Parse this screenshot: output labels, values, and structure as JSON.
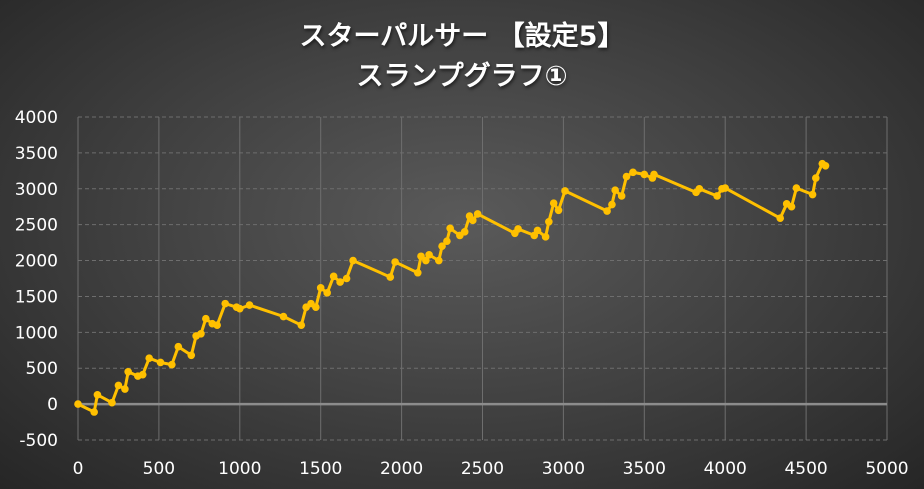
{
  "chart_data": {
    "type": "line",
    "title_lines": [
      "スターパルサー 【設定5】",
      "スランプグラフ①"
    ],
    "xlabel": "",
    "ylabel": "",
    "xlim": [
      0,
      5000
    ],
    "ylim": [
      -500,
      4000
    ],
    "x_ticks": [
      0,
      500,
      1000,
      1500,
      2000,
      2500,
      3000,
      3500,
      4000,
      4500,
      5000
    ],
    "y_ticks": [
      -500,
      0,
      500,
      1000,
      1500,
      2000,
      2500,
      3000,
      3500,
      4000
    ],
    "grid": true,
    "line_color": "#ffc000",
    "grid_color": "#6e6e6e",
    "zero_line_color": "#8c8c8c",
    "series": [
      {
        "points": [
          [
            0,
            0
          ],
          [
            100,
            -110
          ],
          [
            120,
            130
          ],
          [
            210,
            20
          ],
          [
            250,
            260
          ],
          [
            290,
            210
          ],
          [
            310,
            450
          ],
          [
            370,
            390
          ],
          [
            400,
            410
          ],
          [
            440,
            640
          ],
          [
            510,
            580
          ],
          [
            580,
            550
          ],
          [
            620,
            800
          ],
          [
            700,
            680
          ],
          [
            730,
            950
          ],
          [
            760,
            980
          ],
          [
            790,
            1190
          ],
          [
            830,
            1120
          ],
          [
            860,
            1100
          ],
          [
            910,
            1400
          ],
          [
            980,
            1350
          ],
          [
            1000,
            1330
          ],
          [
            1060,
            1380
          ],
          [
            1270,
            1220
          ],
          [
            1380,
            1100
          ],
          [
            1410,
            1350
          ],
          [
            1440,
            1400
          ],
          [
            1470,
            1350
          ],
          [
            1500,
            1620
          ],
          [
            1540,
            1550
          ],
          [
            1580,
            1780
          ],
          [
            1620,
            1700
          ],
          [
            1660,
            1750
          ],
          [
            1700,
            2000
          ],
          [
            1930,
            1770
          ],
          [
            1960,
            1980
          ],
          [
            2100,
            1830
          ],
          [
            2120,
            2060
          ],
          [
            2150,
            2000
          ],
          [
            2170,
            2080
          ],
          [
            2230,
            2000
          ],
          [
            2250,
            2200
          ],
          [
            2280,
            2270
          ],
          [
            2300,
            2450
          ],
          [
            2360,
            2350
          ],
          [
            2390,
            2400
          ],
          [
            2420,
            2620
          ],
          [
            2440,
            2560
          ],
          [
            2470,
            2650
          ],
          [
            2700,
            2380
          ],
          [
            2720,
            2440
          ],
          [
            2820,
            2350
          ],
          [
            2840,
            2420
          ],
          [
            2890,
            2330
          ],
          [
            2910,
            2540
          ],
          [
            2940,
            2800
          ],
          [
            2970,
            2700
          ],
          [
            3010,
            2970
          ],
          [
            3270,
            2690
          ],
          [
            3300,
            2780
          ],
          [
            3320,
            2980
          ],
          [
            3360,
            2900
          ],
          [
            3390,
            3170
          ],
          [
            3430,
            3230
          ],
          [
            3500,
            3200
          ],
          [
            3550,
            3150
          ],
          [
            3560,
            3200
          ],
          [
            3820,
            2950
          ],
          [
            3840,
            3000
          ],
          [
            3950,
            2900
          ],
          [
            3980,
            3000
          ],
          [
            4000,
            3010
          ],
          [
            4340,
            2590
          ],
          [
            4380,
            2790
          ],
          [
            4410,
            2750
          ],
          [
            4440,
            3010
          ],
          [
            4540,
            2920
          ],
          [
            4560,
            3150
          ],
          [
            4600,
            3350
          ],
          [
            4620,
            3320
          ]
        ]
      }
    ]
  }
}
